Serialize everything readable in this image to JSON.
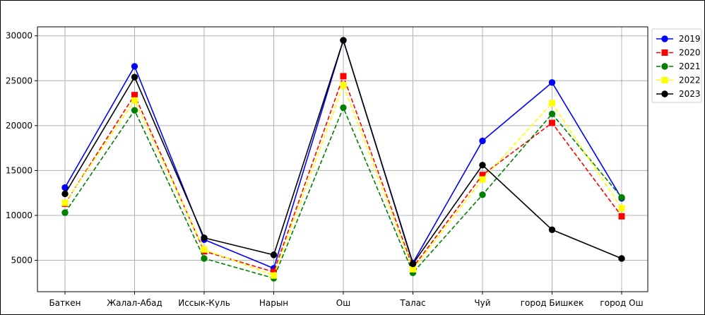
{
  "chart_data": {
    "type": "line",
    "title": "",
    "xlabel": "",
    "ylabel": "",
    "categories": [
      "Баткен",
      "Жалал-Абад",
      "Иссык-Куль",
      "Нарын",
      "Ош",
      "Талас",
      "Чуй",
      "город Бишкек",
      "город Ош"
    ],
    "yticks": [
      "5000",
      "10000",
      "15000",
      "20000",
      "25000",
      "30000"
    ],
    "ylim": [
      1500,
      31000
    ],
    "grid": true,
    "legend_position": "right",
    "series": [
      {
        "name": "2019",
        "color": "#0000ff",
        "line_style": "solid",
        "marker": "circle",
        "values": [
          13100,
          26600,
          7300,
          4100,
          29500,
          4700,
          18300,
          24800,
          11900
        ]
      },
      {
        "name": "2020",
        "color": "#ff0000",
        "line_style": "dashed",
        "marker": "square",
        "values": [
          11300,
          23400,
          6000,
          3700,
          25500,
          4200,
          14500,
          20300,
          9900
        ]
      },
      {
        "name": "2021",
        "color": "#008000",
        "line_style": "dashed",
        "marker": "circle",
        "values": [
          10300,
          21700,
          5200,
          3000,
          22000,
          3600,
          12300,
          21300,
          12000
        ]
      },
      {
        "name": "2022",
        "color": "#ffff00",
        "line_style": "dashed",
        "marker": "square",
        "values": [
          11400,
          22800,
          6200,
          3300,
          24500,
          4000,
          14000,
          22500,
          10800
        ]
      },
      {
        "name": "2023",
        "color": "#000000",
        "line_style": "solid",
        "marker": "circle",
        "values": [
          12400,
          25400,
          7500,
          5600,
          29500,
          4600,
          15600,
          8400,
          5200
        ]
      }
    ]
  }
}
